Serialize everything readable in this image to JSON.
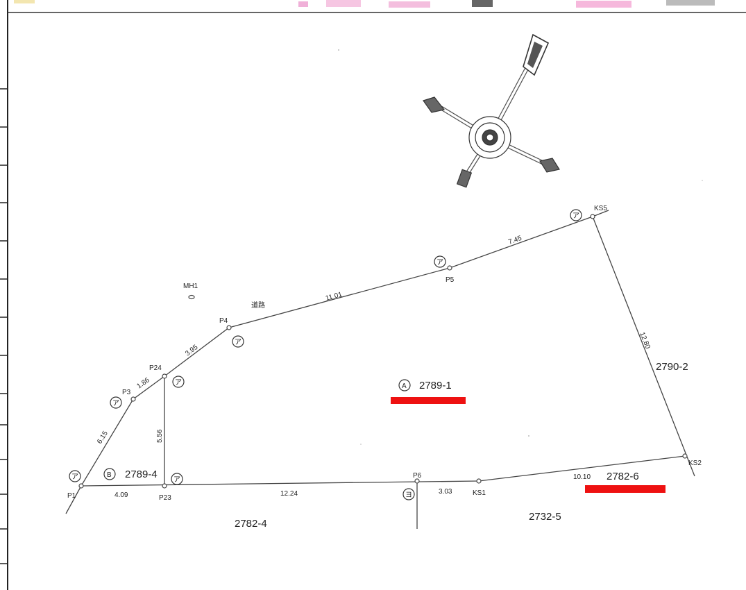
{
  "map": {
    "parcels": [
      {
        "id": "A",
        "number": "2789-1"
      },
      {
        "id": "B",
        "number": "2789-4"
      }
    ],
    "neighbor_lots": [
      "2790-2",
      "2782-6",
      "2732-5",
      "2782-4"
    ],
    "road_label": "道路",
    "manhole_label": "MH1",
    "points": [
      "P1",
      "P3",
      "P24",
      "P4",
      "P5",
      "KS5",
      "KS2",
      "KS1",
      "P6",
      "P23"
    ],
    "distances": [
      "6.15",
      "1.86",
      "3.95",
      "11.01",
      "7.45",
      "12.80",
      "10.10",
      "3.03",
      "12.24",
      "4.09",
      "5.56"
    ],
    "marker_glyphs": {
      "a": "ア",
      "yo": "ヨ",
      "A": "A",
      "B": "B"
    },
    "highlight_color": "#ee1111"
  }
}
